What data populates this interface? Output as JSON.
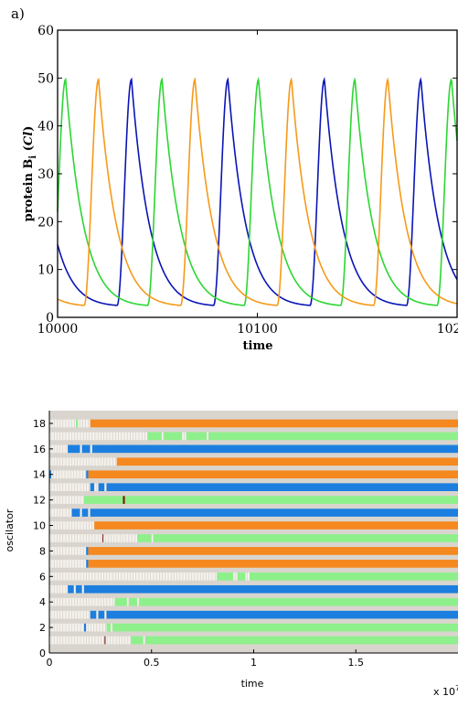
{
  "panel_label": "a)",
  "chart_data": [
    {
      "type": "line",
      "title": "",
      "xlabel": "time",
      "ylabel_main": "protein B",
      "ylabel_sub": "i",
      "ylabel_unit": " (",
      "ylabel_unit_italic": "Cl",
      "ylabel_unit_close": ")",
      "xlim": [
        10000,
        10200
      ],
      "ylim": [
        0,
        60
      ],
      "xticks": [
        10000,
        10100,
        10200
      ],
      "xtick_labels": [
        "10000",
        "10100",
        "10200"
      ],
      "yticks": [
        0,
        10,
        20,
        30,
        40,
        50,
        60
      ],
      "ytick_labels": [
        "0",
        "10",
        "20",
        "30",
        "40",
        "50",
        "60"
      ],
      "grid": false,
      "wave": {
        "period": 48.3,
        "max": 49.7,
        "min": 2.5,
        "rise_duration": 7.2
      },
      "series": [
        {
          "color": "#0a15b5",
          "peak_times": [
            10037.0,
            10085.3,
            10133.6,
            10181.9
          ]
        },
        {
          "color": "#2cd633",
          "peak_times": [
            10004.0,
            10052.3,
            10100.6,
            10148.9,
            10197.2
          ]
        },
        {
          "color": "#f59a1a",
          "peak_times": [
            10020.5,
            10068.8,
            10117.1,
            10165.4
          ]
        }
      ]
    },
    {
      "type": "heatmap",
      "xlabel": "time",
      "ylabel": "oscilator",
      "x_multiplier_label": "x 10",
      "x_multiplier_exponent": "7",
      "xlim": [
        0,
        2.0
      ],
      "ylim": [
        0,
        19
      ],
      "xticks": [
        0,
        0.5,
        1,
        1.5
      ],
      "xtick_labels": [
        "0",
        "0.5",
        "1",
        "1.5"
      ],
      "yticks": [
        0,
        2,
        4,
        6,
        8,
        10,
        12,
        14,
        16,
        18
      ],
      "ytick_labels": [
        "0",
        "2",
        "4",
        "6",
        "8",
        "10",
        "12",
        "14",
        "16",
        "18"
      ],
      "background_color": "#d9d5ce",
      "state_colors": {
        "undetermined": "#f4f1ec",
        "blue": "#1c7fe0",
        "green": "#8ef08b",
        "orange": "#f5881e",
        "marker": "#7a1410"
      },
      "rows": [
        {
          "oscillator": 1,
          "segments": [
            [
              0,
              0.27,
              "undetermined"
            ],
            [
              0.27,
              0.275,
              "marker"
            ],
            [
              0.275,
              0.4,
              "undetermined"
            ],
            [
              0.4,
              0.46,
              "green"
            ],
            [
              0.46,
              0.47,
              "undetermined"
            ],
            [
              0.47,
              2.0,
              "green"
            ]
          ]
        },
        {
          "oscillator": 2,
          "segments": [
            [
              0,
              0.17,
              "undetermined"
            ],
            [
              0.17,
              0.18,
              "blue"
            ],
            [
              0.18,
              0.28,
              "undetermined"
            ],
            [
              0.28,
              0.3,
              "green"
            ],
            [
              0.3,
              0.31,
              "undetermined"
            ],
            [
              0.31,
              2.0,
              "green"
            ]
          ]
        },
        {
          "oscillator": 3,
          "segments": [
            [
              0,
              0.2,
              "undetermined"
            ],
            [
              0.2,
              0.23,
              "blue"
            ],
            [
              0.23,
              0.24,
              "undetermined"
            ],
            [
              0.24,
              0.27,
              "blue"
            ],
            [
              0.27,
              0.28,
              "undetermined"
            ],
            [
              0.28,
              2.0,
              "blue"
            ]
          ]
        },
        {
          "oscillator": 4,
          "segments": [
            [
              0,
              0.32,
              "undetermined"
            ],
            [
              0.32,
              0.38,
              "green"
            ],
            [
              0.38,
              0.39,
              "undetermined"
            ],
            [
              0.39,
              0.43,
              "green"
            ],
            [
              0.43,
              0.44,
              "undetermined"
            ],
            [
              0.44,
              2.0,
              "green"
            ]
          ]
        },
        {
          "oscillator": 5,
          "segments": [
            [
              0,
              0.09,
              "undetermined"
            ],
            [
              0.09,
              0.12,
              "blue"
            ],
            [
              0.12,
              0.13,
              "undetermined"
            ],
            [
              0.13,
              0.16,
              "blue"
            ],
            [
              0.16,
              0.17,
              "undetermined"
            ],
            [
              0.17,
              2.0,
              "blue"
            ]
          ]
        },
        {
          "oscillator": 6,
          "segments": [
            [
              0,
              0.82,
              "undetermined"
            ],
            [
              0.82,
              0.9,
              "green"
            ],
            [
              0.9,
              0.92,
              "undetermined"
            ],
            [
              0.92,
              0.96,
              "green"
            ],
            [
              0.96,
              0.98,
              "undetermined"
            ],
            [
              0.98,
              2.0,
              "green"
            ]
          ]
        },
        {
          "oscillator": 7,
          "segments": [
            [
              0,
              0.18,
              "undetermined"
            ],
            [
              0.18,
              0.19,
              "blue"
            ],
            [
              0.19,
              2.0,
              "orange"
            ]
          ]
        },
        {
          "oscillator": 8,
          "segments": [
            [
              0,
              0.18,
              "undetermined"
            ],
            [
              0.18,
              0.19,
              "blue"
            ],
            [
              0.19,
              2.0,
              "orange"
            ]
          ]
        },
        {
          "oscillator": 9,
          "segments": [
            [
              0,
              0.26,
              "undetermined"
            ],
            [
              0.26,
              0.265,
              "marker"
            ],
            [
              0.265,
              0.43,
              "undetermined"
            ],
            [
              0.43,
              0.5,
              "green"
            ],
            [
              0.5,
              0.51,
              "undetermined"
            ],
            [
              0.51,
              2.0,
              "green"
            ]
          ]
        },
        {
          "oscillator": 10,
          "segments": [
            [
              0,
              0.22,
              "undetermined"
            ],
            [
              0.22,
              2.0,
              "orange"
            ]
          ]
        },
        {
          "oscillator": 11,
          "segments": [
            [
              0,
              0.11,
              "undetermined"
            ],
            [
              0.11,
              0.15,
              "blue"
            ],
            [
              0.15,
              0.16,
              "undetermined"
            ],
            [
              0.16,
              0.19,
              "blue"
            ],
            [
              0.19,
              0.2,
              "undetermined"
            ],
            [
              0.2,
              2.0,
              "blue"
            ]
          ]
        },
        {
          "oscillator": 12,
          "segments": [
            [
              0,
              0.17,
              "undetermined"
            ],
            [
              0.17,
              0.2,
              "green"
            ],
            [
              0.2,
              0.36,
              "green"
            ],
            [
              0.36,
              0.37,
              "marker"
            ],
            [
              0.37,
              2.0,
              "green"
            ]
          ]
        },
        {
          "oscillator": 13,
          "segments": [
            [
              0,
              0.2,
              "undetermined"
            ],
            [
              0.2,
              0.22,
              "blue"
            ],
            [
              0.22,
              0.24,
              "undetermined"
            ],
            [
              0.24,
              0.27,
              "blue"
            ],
            [
              0.27,
              0.28,
              "undetermined"
            ],
            [
              0.28,
              2.0,
              "blue"
            ]
          ]
        },
        {
          "oscillator": 14,
          "segments": [
            [
              0,
              0.01,
              "blue"
            ],
            [
              0.01,
              0.18,
              "undetermined"
            ],
            [
              0.18,
              0.19,
              "blue"
            ],
            [
              0.19,
              2.0,
              "orange"
            ]
          ]
        },
        {
          "oscillator": 15,
          "segments": [
            [
              0,
              0.33,
              "undetermined"
            ],
            [
              0.33,
              2.0,
              "orange"
            ]
          ]
        },
        {
          "oscillator": 16,
          "segments": [
            [
              0,
              0.09,
              "undetermined"
            ],
            [
              0.09,
              0.15,
              "blue"
            ],
            [
              0.15,
              0.16,
              "undetermined"
            ],
            [
              0.16,
              0.2,
              "blue"
            ],
            [
              0.2,
              0.21,
              "undetermined"
            ],
            [
              0.21,
              2.0,
              "blue"
            ]
          ]
        },
        {
          "oscillator": 17,
          "segments": [
            [
              0,
              0.48,
              "undetermined"
            ],
            [
              0.48,
              0.55,
              "green"
            ],
            [
              0.55,
              0.56,
              "undetermined"
            ],
            [
              0.56,
              0.65,
              "green"
            ],
            [
              0.65,
              0.67,
              "undetermined"
            ],
            [
              0.67,
              0.77,
              "green"
            ],
            [
              0.77,
              0.78,
              "undetermined"
            ],
            [
              0.78,
              2.0,
              "green"
            ]
          ]
        },
        {
          "oscillator": 18,
          "segments": [
            [
              0,
              0.13,
              "undetermined"
            ],
            [
              0.13,
              0.14,
              "green"
            ],
            [
              0.14,
              0.2,
              "undetermined"
            ],
            [
              0.2,
              2.0,
              "orange"
            ]
          ]
        }
      ]
    }
  ]
}
